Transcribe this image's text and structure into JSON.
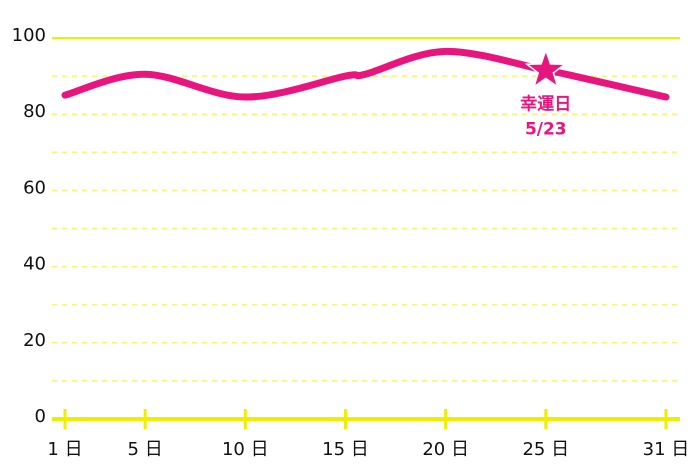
{
  "chart_data": {
    "type": "line",
    "x": [
      1,
      5,
      10,
      15,
      16,
      20,
      25,
      26,
      31
    ],
    "series": [
      {
        "color": "#e8157f",
        "values": [
          85,
          90.5,
          84.5,
          90,
          90.5,
          96.5,
          91.5,
          90.5,
          84.5
        ]
      }
    ],
    "xlim": [
      1,
      31
    ],
    "xticks": [
      {
        "value": 1,
        "label": "1 日"
      },
      {
        "value": 5,
        "label": "5 日"
      },
      {
        "value": 10,
        "label": "10 日"
      },
      {
        "value": 15,
        "label": "15 日"
      },
      {
        "value": 20,
        "label": "20 日"
      },
      {
        "value": 25,
        "label": "25 日"
      },
      {
        "value": 31,
        "label": "31 日"
      }
    ],
    "ylim": [
      0,
      100
    ],
    "yticks": [
      0,
      20,
      40,
      60,
      80,
      100
    ],
    "minor_yticks": [
      10,
      30,
      50,
      70,
      90
    ],
    "grid": true,
    "grid_color": "#f7f27a",
    "axis_color": "#eeee00",
    "annotation": {
      "x": 25,
      "y": 91.5,
      "lines": [
        "幸運日",
        "5/23"
      ],
      "color": "#e8157f"
    }
  }
}
